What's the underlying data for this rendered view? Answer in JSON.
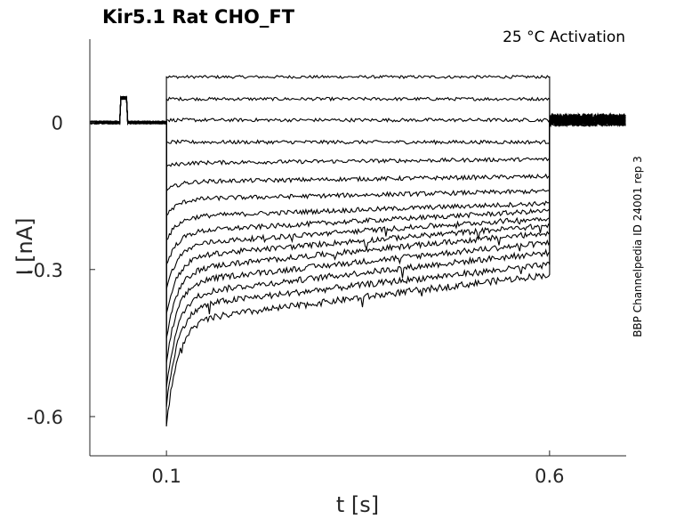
{
  "chart_data": {
    "type": "line",
    "title": "Kir5.1  Rat  CHO_FT",
    "annotation": "25 °C  Activation",
    "side_label": "BBP Channelpedia ID 24001 rep 3",
    "xlabel": "t [s]",
    "ylabel": "I [nA]",
    "xlim": [
      0.0,
      0.7
    ],
    "ylim": [
      -0.68,
      0.17
    ],
    "xticks": [
      {
        "value": 0.1,
        "label": "0.1"
      },
      {
        "value": 0.6,
        "label": "0.6"
      }
    ],
    "yticks": [
      {
        "value": 0,
        "label": "0"
      },
      {
        "value": -0.3,
        "label": "-0.3"
      },
      {
        "value": -0.6,
        "label": "-0.6"
      }
    ],
    "grid": false,
    "trace_color": "#000000",
    "step_start_s": 0.1,
    "step_end_s": 0.6,
    "prepulse_window_s": [
      0.04,
      0.049
    ],
    "prepulse_current_nA": 0.05,
    "holding_current_nA": 0.0,
    "series": [
      {
        "steady": 0.093,
        "end": 0.093,
        "peak": 0.093
      },
      {
        "steady": 0.048,
        "end": 0.048,
        "peak": 0.048
      },
      {
        "steady": 0.005,
        "end": 0.005,
        "peak": 0.005
      },
      {
        "steady": -0.04,
        "end": -0.04,
        "peak": -0.04
      },
      {
        "steady": -0.082,
        "end": -0.075,
        "peak": -0.09
      },
      {
        "steady": -0.12,
        "end": -0.11,
        "peak": -0.14
      },
      {
        "steady": -0.155,
        "end": -0.14,
        "peak": -0.19
      },
      {
        "steady": -0.19,
        "end": -0.165,
        "peak": -0.24
      },
      {
        "steady": -0.22,
        "end": -0.18,
        "peak": -0.29
      },
      {
        "steady": -0.245,
        "end": -0.195,
        "peak": -0.34
      },
      {
        "steady": -0.27,
        "end": -0.21,
        "peak": -0.39
      },
      {
        "steady": -0.295,
        "end": -0.225,
        "peak": -0.44
      },
      {
        "steady": -0.32,
        "end": -0.245,
        "peak": -0.49
      },
      {
        "steady": -0.345,
        "end": -0.265,
        "peak": -0.54
      },
      {
        "steady": -0.37,
        "end": -0.29,
        "peak": -0.58
      },
      {
        "steady": -0.4,
        "end": -0.31,
        "peak": -0.62
      }
    ]
  }
}
